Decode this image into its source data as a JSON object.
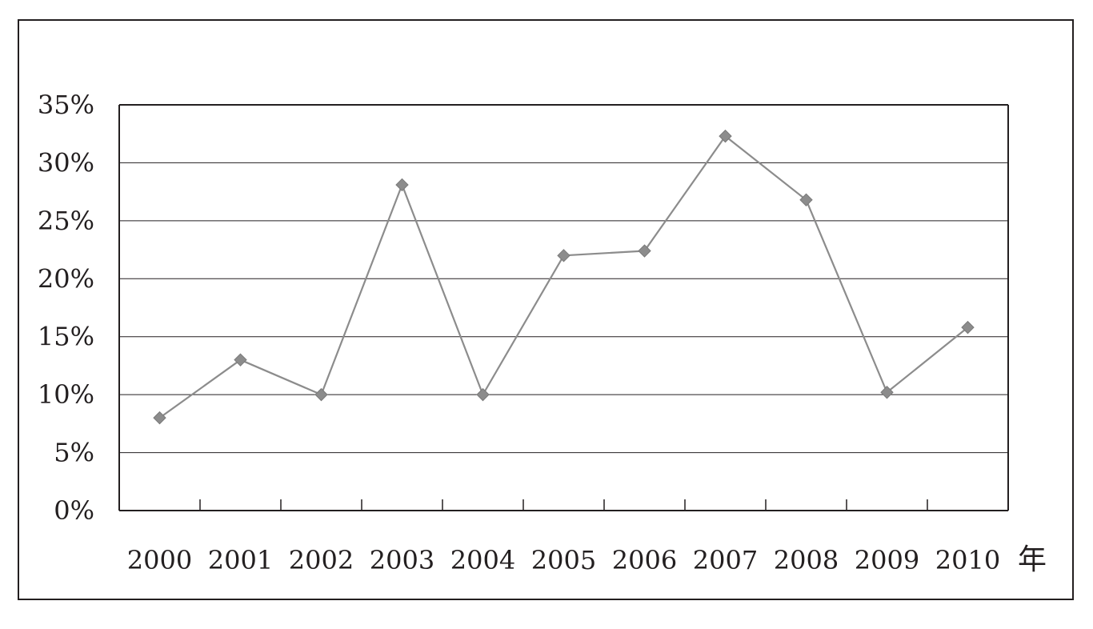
{
  "chart_data": {
    "type": "line",
    "title": "",
    "xlabel": "年",
    "ylabel": "",
    "categories": [
      "2000",
      "2001",
      "2002",
      "2003",
      "2004",
      "2005",
      "2006",
      "2007",
      "2008",
      "2009",
      "2010"
    ],
    "series": [
      {
        "values": [
          8.0,
          13.0,
          10.0,
          28.1,
          10.0,
          22.0,
          22.4,
          32.3,
          26.8,
          10.2,
          15.8
        ]
      }
    ],
    "ylim": [
      0,
      35
    ],
    "yticks": [
      0,
      5,
      10,
      15,
      20,
      25,
      30,
      35
    ],
    "ytick_labels": [
      "0%",
      "5%",
      "10%",
      "15%",
      "20%",
      "25%",
      "30%",
      "35%"
    ],
    "grid": true,
    "legend": "none",
    "marker": "diamond",
    "colors": {
      "line": "#8c8c8c",
      "marker": "#8c8c8c",
      "axis": "#231f20",
      "grid": "#231f20"
    }
  }
}
